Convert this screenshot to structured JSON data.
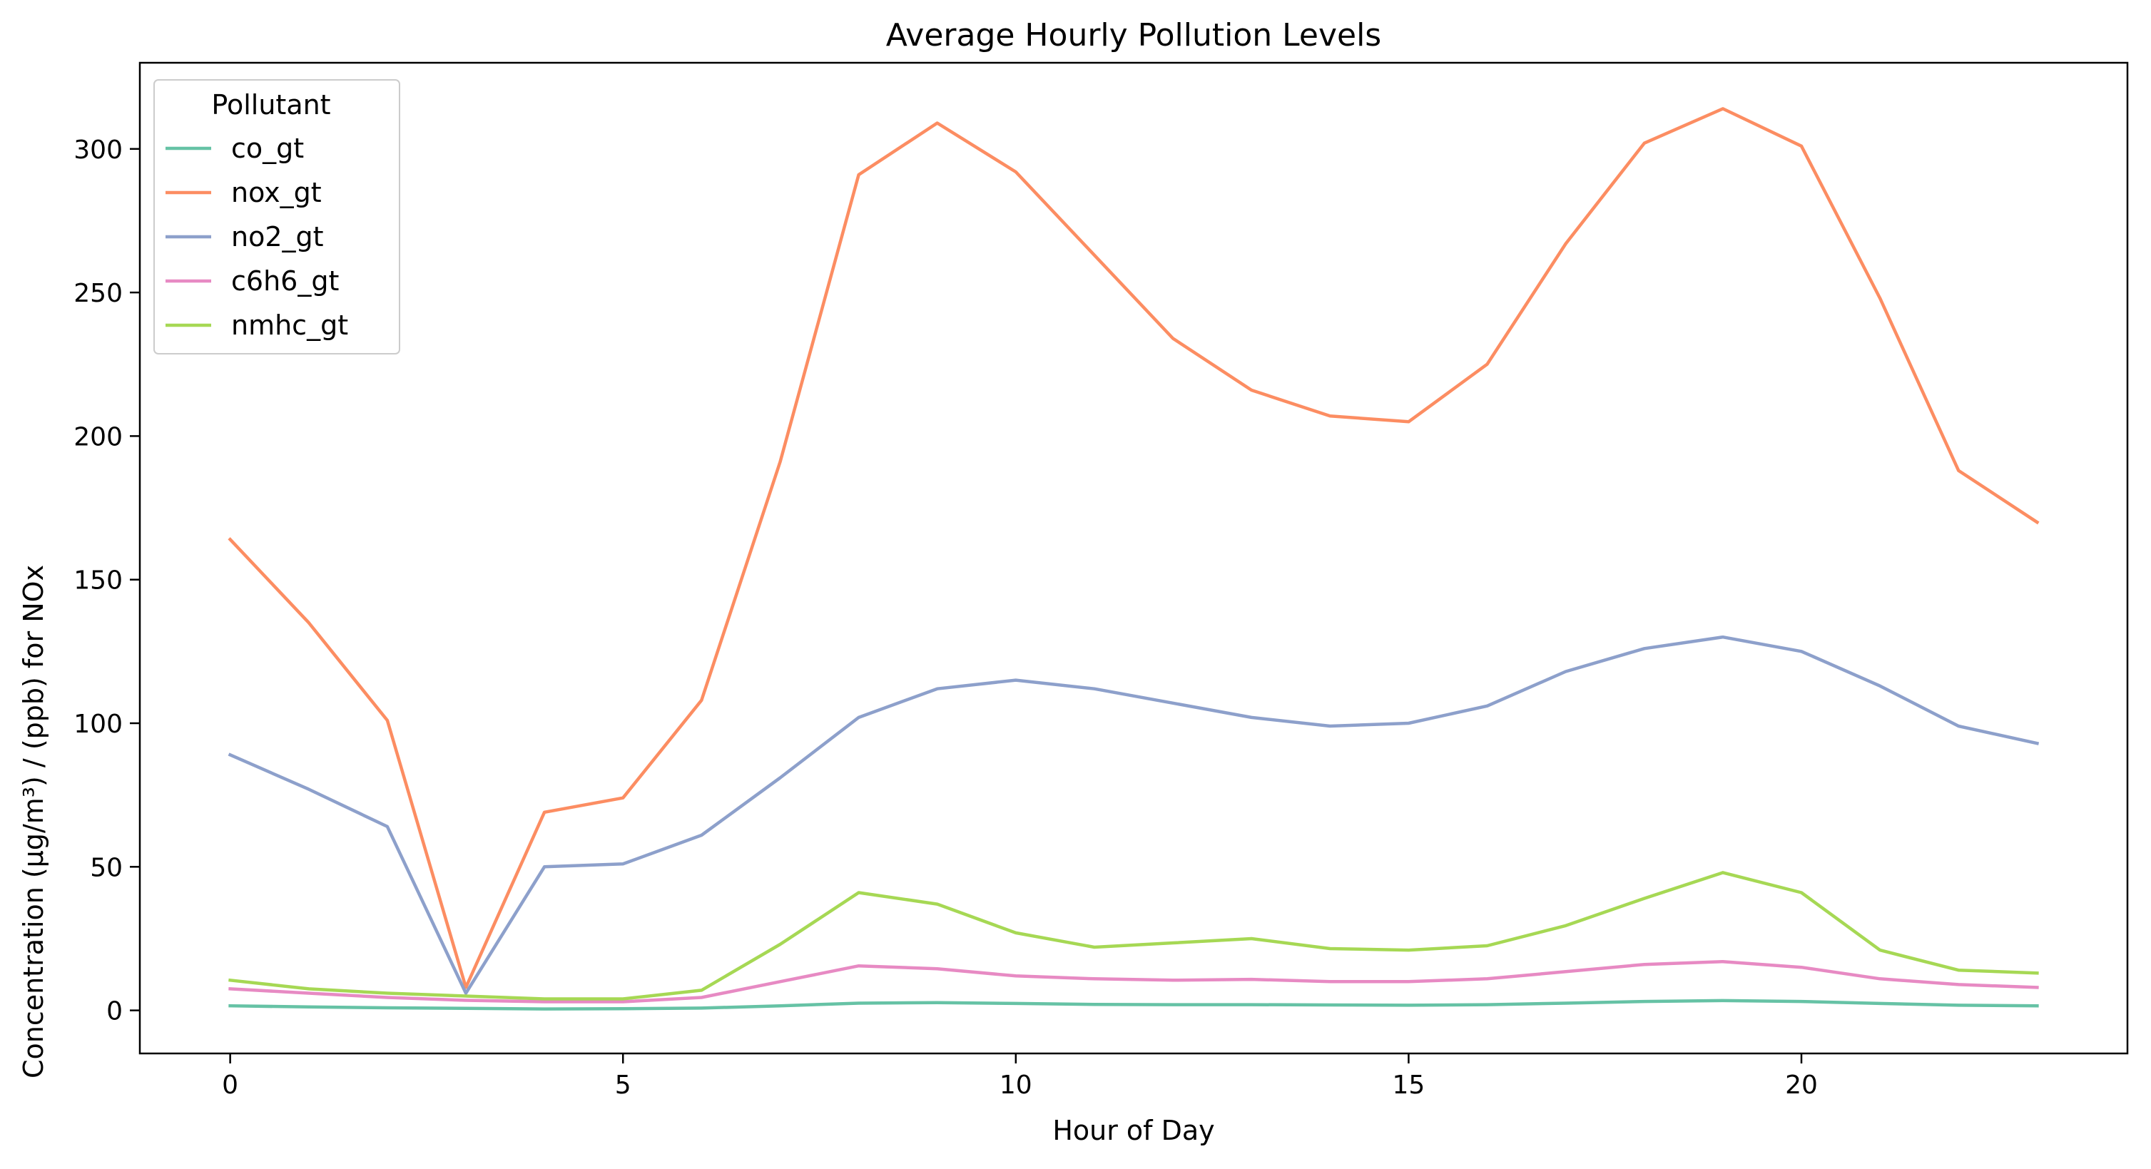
{
  "chart_data": {
    "type": "line",
    "title": "Average Hourly Pollution Levels",
    "xlabel": "Hour of Day",
    "ylabel": "Concentration (µg/m³) / (ppb) for NOx",
    "xlim": [
      -1.15,
      24.15
    ],
    "ylim": [
      -15,
      330
    ],
    "xticks": [
      0,
      5,
      10,
      15,
      20
    ],
    "yticks": [
      0,
      50,
      100,
      150,
      200,
      250,
      300
    ],
    "grid": false,
    "legend": {
      "title": "Pollutant",
      "placement": "top-left"
    },
    "x": [
      0,
      1,
      2,
      3,
      4,
      5,
      6,
      7,
      8,
      9,
      10,
      11,
      12,
      13,
      14,
      15,
      16,
      17,
      18,
      19,
      20,
      21,
      22,
      23
    ],
    "series": [
      {
        "name": "co_gt",
        "color": "#66c2a5",
        "values": [
          1.6,
          1.2,
          0.9,
          0.7,
          0.5,
          0.6,
          0.8,
          1.6,
          2.5,
          2.7,
          2.4,
          2.1,
          2.0,
          2.0,
          1.9,
          1.8,
          2.0,
          2.5,
          3.1,
          3.4,
          3.1,
          2.4,
          1.8,
          1.6
        ]
      },
      {
        "name": "nox_gt",
        "color": "#fc8d62",
        "values": [
          164,
          135,
          101,
          8,
          69,
          74,
          108,
          191,
          291,
          309,
          292,
          263,
          234,
          216,
          207,
          205,
          225,
          267,
          302,
          314,
          301,
          248,
          188,
          170
        ]
      },
      {
        "name": "no2_gt",
        "color": "#8da0cb",
        "values": [
          89,
          77,
          64,
          6,
          50,
          51,
          61,
          81,
          102,
          112,
          115,
          112,
          107,
          102,
          99,
          100,
          106,
          118,
          126,
          130,
          125,
          113,
          99,
          93
        ]
      },
      {
        "name": "c6h6_gt",
        "color": "#e78ac3",
        "values": [
          7.5,
          6,
          4.5,
          3.5,
          3,
          3,
          4.5,
          10,
          15.5,
          14.5,
          12,
          11,
          10.5,
          10.8,
          10,
          10,
          11,
          13.5,
          16,
          17,
          15,
          11,
          9,
          8
        ]
      },
      {
        "name": "nmhc_gt",
        "color": "#a6d854",
        "values": [
          10.5,
          7.5,
          6,
          5,
          4,
          4,
          7,
          23,
          41,
          37,
          27,
          22,
          23.5,
          25,
          21.5,
          21,
          22.5,
          29.5,
          39,
          48,
          41,
          21,
          14,
          13
        ]
      }
    ]
  }
}
